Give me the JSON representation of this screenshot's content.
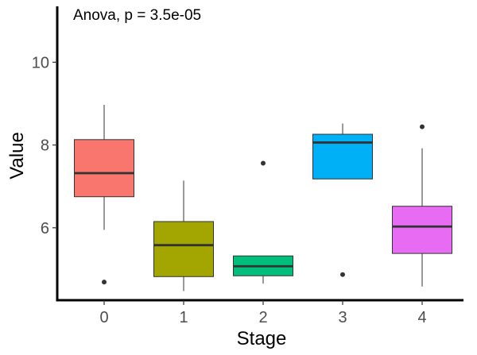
{
  "chart_data": {
    "type": "boxplot",
    "title": "",
    "annotation": "Anova, p = 3.5e-05",
    "xlabel": "Stage",
    "ylabel": "Value",
    "ylim": [
      4.25,
      11.35
    ],
    "yticks": [
      6,
      8,
      10
    ],
    "grid": false,
    "legend": "none",
    "categories": [
      "0",
      "1",
      "2",
      "3",
      "4"
    ],
    "boxes": [
      {
        "category": "0",
        "whisker_low": 5.95,
        "q1": 6.75,
        "median": 7.32,
        "q3": 8.13,
        "whisker_high": 8.97,
        "outliers": [
          4.69
        ],
        "color": "#F8766D"
      },
      {
        "category": "1",
        "whisker_low": 4.47,
        "q1": 4.82,
        "median": 5.58,
        "q3": 6.15,
        "whisker_high": 7.14,
        "outliers": [],
        "color": "#A3A500"
      },
      {
        "category": "2",
        "whisker_low": 4.65,
        "q1": 4.84,
        "median": 5.07,
        "q3": 5.32,
        "whisker_high": 5.32,
        "outliers": [
          7.56
        ],
        "color": "#00BF7D"
      },
      {
        "category": "3",
        "whisker_low": 7.18,
        "q1": 7.18,
        "median": 8.06,
        "q3": 8.26,
        "whisker_high": 8.52,
        "outliers": [
          4.87
        ],
        "color": "#00B0F6"
      },
      {
        "category": "4",
        "whisker_low": 4.58,
        "q1": 5.38,
        "median": 6.03,
        "q3": 6.52,
        "whisker_high": 7.92,
        "outliers": [
          8.44
        ],
        "color": "#E76BF3"
      }
    ]
  }
}
